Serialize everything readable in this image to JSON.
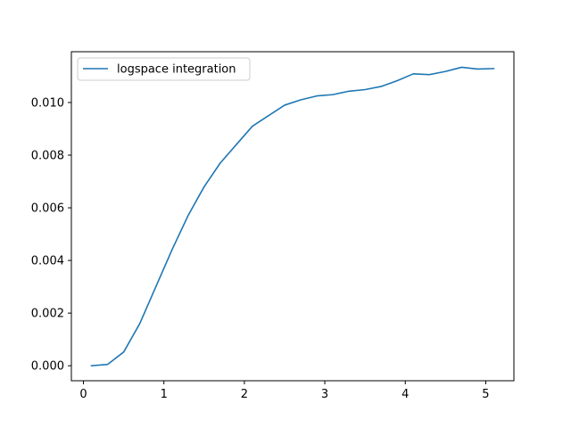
{
  "chart_data": {
    "type": "line",
    "title": "",
    "xlabel": "",
    "ylabel": "",
    "xlim": [
      -0.15,
      5.35
    ],
    "ylim": [
      -0.00057,
      0.01193
    ],
    "xticks": [
      0,
      1,
      2,
      3,
      4,
      5
    ],
    "xtick_labels": [
      "0",
      "1",
      "2",
      "3",
      "4",
      "5"
    ],
    "yticks": [
      0.0,
      0.002,
      0.004,
      0.006,
      0.008,
      0.01
    ],
    "ytick_labels": [
      "0.000",
      "0.002",
      "0.004",
      "0.006",
      "0.008",
      "0.010"
    ],
    "grid": false,
    "legend_position": "top-left",
    "series": [
      {
        "name": "logspace integration",
        "color": "#1f77b4",
        "x": [
          0.1,
          0.3,
          0.5,
          0.7,
          0.9,
          1.1,
          1.3,
          1.5,
          1.7,
          1.9,
          2.1,
          2.3,
          2.5,
          2.7,
          2.9,
          3.1,
          3.3,
          3.5,
          3.7,
          3.9,
          4.1,
          4.3,
          4.5,
          4.7,
          4.9,
          5.1
        ],
        "values": [
          0.0,
          5e-05,
          0.00052,
          0.0016,
          0.003,
          0.0044,
          0.0057,
          0.0068,
          0.0077,
          0.0084,
          0.0091,
          0.0095,
          0.0099,
          0.0101,
          0.01025,
          0.0103,
          0.01043,
          0.01049,
          0.01061,
          0.01083,
          0.01109,
          0.01106,
          0.01118,
          0.01134,
          0.01127,
          0.01129
        ]
      }
    ]
  }
}
